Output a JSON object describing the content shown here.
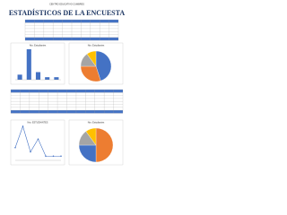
{
  "header": {
    "school": "CENTRO EDUCATIVO CUMBRES",
    "title": "ESTADÍSTICOS DE LA ENCUESTA"
  },
  "charts": [
    {
      "type": "bar",
      "title": "Nro. Estudiantes",
      "values": [
        2,
        12,
        3,
        1,
        1
      ],
      "color": "#4472c4"
    },
    {
      "type": "pie",
      "title": "Nro. Estudiantes",
      "values": [
        45,
        30,
        15,
        10
      ],
      "colors": [
        "#4472c4",
        "#ed7d31",
        "#a5a5a5",
        "#ffc000"
      ]
    },
    {
      "type": "line",
      "title": "Nro. ESTUDIANTES",
      "values": [
        3,
        8,
        2,
        5,
        1,
        1,
        1
      ],
      "color": "#4472c4"
    },
    {
      "type": "pie",
      "title": "Nro. Estudiantes",
      "values": [
        50,
        25,
        15,
        10
      ],
      "colors": [
        "#ed7d31",
        "#4472c4",
        "#a5a5a5",
        "#ffc000"
      ]
    }
  ]
}
